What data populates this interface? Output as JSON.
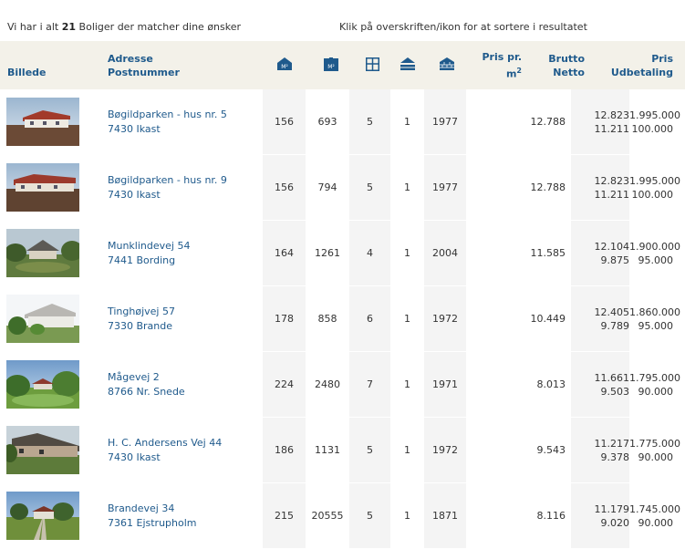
{
  "summary": {
    "prefix": "Vi har i alt",
    "count": "21",
    "suffix": "Boliger der matcher dine ønsker",
    "sort_hint": "Klik på overskriften/ikon for at sortere i resultatet"
  },
  "headers": {
    "billede": "Billede",
    "adresse": "Adresse",
    "postnummer": "Postnummer",
    "pris_pr": "Pris pr.",
    "m2": "m",
    "m2_sup": "2",
    "brutto": "Brutto",
    "netto": "Netto",
    "pris": "Pris",
    "udbetaling": "Udbetaling",
    "icon_m2_text": "M²",
    "icon_grund_text": "M²"
  },
  "icons": {
    "house_area": "house-m2-icon",
    "plot_area": "plot-m2-icon",
    "rooms": "rooms-icon",
    "floors": "floors-icon",
    "year": "year-built-icon"
  },
  "colors": {
    "link": "#1f5a8c",
    "header_bg": "#f3f1e9",
    "icon": "#1f5a8c"
  },
  "rows": [
    {
      "street": "Bøgildparken - hus nr. 5",
      "zip": "7430 Ikast",
      "m2": "156",
      "grund": "693",
      "rum": "5",
      "plan": "1",
      "year": "1977",
      "ppm": "12.788",
      "brutto": "12.823",
      "netto": "11.211",
      "pris": "1.995.000",
      "udbetaling": "100.000"
    },
    {
      "street": "Bøgildparken - hus nr. 9",
      "zip": "7430 Ikast",
      "m2": "156",
      "grund": "794",
      "rum": "5",
      "plan": "1",
      "year": "1977",
      "ppm": "12.788",
      "brutto": "12.823",
      "netto": "11.211",
      "pris": "1.995.000",
      "udbetaling": "100.000"
    },
    {
      "street": "Munklindevej 54",
      "zip": "7441 Bording",
      "m2": "164",
      "grund": "1261",
      "rum": "4",
      "plan": "1",
      "year": "2004",
      "ppm": "11.585",
      "brutto": "12.104",
      "netto": "9.875",
      "pris": "1.900.000",
      "udbetaling": "95.000"
    },
    {
      "street": "Tinghøjvej 57",
      "zip": "7330 Brande",
      "m2": "178",
      "grund": "858",
      "rum": "6",
      "plan": "1",
      "year": "1972",
      "ppm": "10.449",
      "brutto": "12.405",
      "netto": "9.789",
      "pris": "1.860.000",
      "udbetaling": "95.000"
    },
    {
      "street": "Mågevej 2",
      "zip": "8766 Nr. Snede",
      "m2": "224",
      "grund": "2480",
      "rum": "7",
      "plan": "1",
      "year": "1971",
      "ppm": "8.013",
      "brutto": "11.661",
      "netto": "9.503",
      "pris": "1.795.000",
      "udbetaling": "90.000"
    },
    {
      "street": "H. C. Andersens Vej 44",
      "zip": "7430 Ikast",
      "m2": "186",
      "grund": "1131",
      "rum": "5",
      "plan": "1",
      "year": "1972",
      "ppm": "9.543",
      "brutto": "11.217",
      "netto": "9.378",
      "pris": "1.775.000",
      "udbetaling": "90.000"
    },
    {
      "street": "Brandevej 34",
      "zip": "7361 Ejstrupholm",
      "m2": "215",
      "grund": "20555",
      "rum": "5",
      "plan": "1",
      "year": "1871",
      "ppm": "8.116",
      "brutto": "11.179",
      "netto": "9.020",
      "pris": "1.745.000",
      "udbetaling": "90.000"
    }
  ]
}
